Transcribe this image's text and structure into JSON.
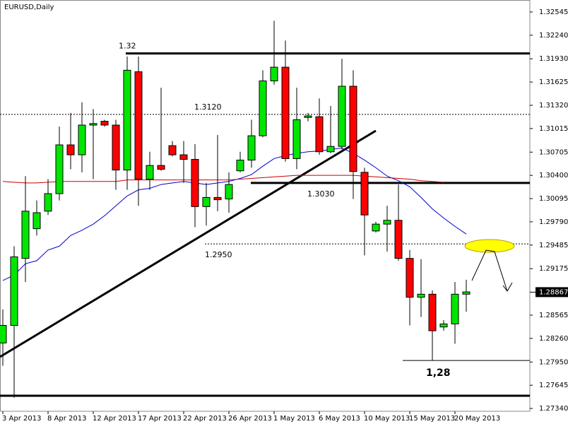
{
  "chart_data": {
    "type": "candlestick",
    "title": "EURUSD,Daily",
    "categories": [
      "3 Apr 2013",
      null,
      null,
      null,
      "8 Apr 2013",
      null,
      null,
      null,
      "12 Apr 2013",
      null,
      null,
      null,
      "17 Apr 2013",
      null,
      null,
      null,
      "22 Apr 2013",
      null,
      null,
      null,
      "26 Apr 2013",
      null,
      null,
      null,
      "1 May 2013",
      null,
      null,
      null,
      "6 May 2013",
      null,
      null,
      null,
      "10 May 2013",
      null,
      null,
      null,
      "15 May 2013",
      null,
      null,
      null,
      "20 May 2013",
      null
    ],
    "open": [
      1.282,
      1.2843,
      1.2931,
      1.297,
      1.2993,
      1.3016,
      1.308,
      1.3067,
      1.3106,
      1.3111,
      1.3106,
      1.3047,
      1.3176,
      1.3035,
      1.3053,
      1.3079,
      1.3067,
      1.3061,
      1.2999,
      1.3011,
      1.3009,
      1.3046,
      1.306,
      1.3092,
      1.3164,
      1.3182,
      1.3062,
      1.3116,
      1.3117,
      1.3071,
      1.3078,
      1.3157,
      1.3044,
      1.2967,
      1.2976,
      1.2981,
      1.2931,
      1.288,
      1.2884,
      1.2841,
      1.2845,
      1.2884
    ],
    "high": [
      1.2864,
      1.2947,
      1.3039,
      1.3007,
      1.3035,
      1.3104,
      1.3122,
      1.3136,
      1.3127,
      1.3113,
      1.3113,
      1.3196,
      1.3196,
      1.3071,
      1.3155,
      1.3085,
      1.3085,
      1.3081,
      1.303,
      1.3093,
      1.3044,
      1.3071,
      1.3113,
      1.3178,
      1.3243,
      1.3217,
      1.3155,
      1.3122,
      1.3141,
      1.3131,
      1.3193,
      1.3178,
      1.305,
      1.2979,
      1.3,
      1.3028,
      1.2942,
      1.293,
      1.2889,
      1.285,
      1.29,
      1.2903
    ],
    "low": [
      1.279,
      1.2748,
      1.29,
      1.2961,
      1.2988,
      1.3007,
      1.3048,
      1.3044,
      1.3035,
      1.3104,
      1.3021,
      1.3021,
      1.3,
      1.3021,
      1.3046,
      1.3065,
      1.303,
      1.2972,
      1.2974,
      1.2993,
      1.2991,
      1.3044,
      1.305,
      1.309,
      1.3159,
      1.3058,
      1.3048,
      1.3111,
      1.3067,
      1.3069,
      1.3074,
      1.3009,
      1.2935,
      1.2965,
      1.294,
      1.2928,
      1.2843,
      1.2854,
      1.2797,
      1.2836,
      1.2819,
      1.2861
    ],
    "close": [
      1.2843,
      1.2933,
      1.2993,
      1.2991,
      1.3016,
      1.308,
      1.3067,
      1.3106,
      1.3108,
      1.3106,
      1.3047,
      1.3178,
      1.3035,
      1.3053,
      1.3048,
      1.3067,
      1.3061,
      1.2999,
      1.3011,
      1.3008,
      1.3028,
      1.306,
      1.3092,
      1.3164,
      1.3182,
      1.3062,
      1.3113,
      1.3118,
      1.3071,
      1.3078,
      1.3157,
      1.3045,
      1.2988,
      1.2976,
      1.2981,
      1.2931,
      1.288,
      1.2884,
      1.2836,
      1.2845,
      1.2884,
      1.2887
    ],
    "up_color": "#00e600",
    "down_color": "#ff0000",
    "lines": [
      {
        "color": "#0000cc",
        "values": [
          1.2902,
          1.2909,
          1.2924,
          1.2928,
          1.2942,
          1.2947,
          1.2961,
          1.2968,
          1.2976,
          1.2987,
          1.3,
          1.3013,
          1.3021,
          1.3023,
          1.3028,
          1.303,
          1.3032,
          1.303,
          1.3028,
          1.303,
          1.3032,
          1.3036,
          1.3041,
          1.3052,
          1.3062,
          1.3066,
          1.3069,
          1.3071,
          1.3072,
          1.3074,
          1.3076,
          1.3069,
          1.306,
          1.305,
          1.3039,
          1.3033,
          1.3025,
          1.3011,
          1.2996,
          1.2984,
          1.2973,
          1.2963
        ]
      },
      {
        "color": "#cc0000",
        "values": [
          1.3032,
          1.3031,
          1.303,
          1.303,
          1.3031,
          1.3032,
          1.3032,
          1.3032,
          1.3032,
          1.3032,
          1.3032,
          1.3034,
          1.3034,
          1.3034,
          1.3034,
          1.3034,
          1.3034,
          1.3034,
          1.3034,
          1.3034,
          1.3034,
          1.3035,
          1.3036,
          1.3037,
          1.3038,
          1.3039,
          1.304,
          1.304,
          1.304,
          1.304,
          1.304,
          1.304,
          1.3039,
          1.3038,
          1.3037,
          1.3036,
          1.3035,
          1.3033,
          1.3032,
          1.3031,
          null,
          null
        ]
      }
    ],
    "annotations": [
      {
        "label": "1.32",
        "value": 1.32
      },
      {
        "label": "1.3120",
        "value": 1.312
      },
      {
        "label": "1.3030",
        "value": 1.303
      },
      {
        "label": "1.2950",
        "value": 1.295
      },
      {
        "label": "1,28",
        "value": 1.2797
      }
    ],
    "last_price": 1.28867,
    "ylim": [
      1.27303,
      1.32702
    ],
    "yticks": [
      1.32545,
      {
        "value": 1.3224,
        "label": "1.32240"
      },
      {
        "value": 1.3193,
        "label": "1.31930"
      },
      1.31625,
      {
        "value": 1.3132,
        "label": "1.31320"
      },
      1.31015,
      1.30705,
      {
        "value": 1.304,
        "label": "1.30400"
      },
      1.30095,
      {
        "value": 1.2979,
        "label": "1.29790"
      },
      1.29485,
      1.29175,
      1.28565,
      {
        "value": 1.2826,
        "label": "1.28260"
      },
      {
        "value": 1.2795,
        "label": "1.27950"
      },
      1.27645,
      {
        "value": 1.2734,
        "label": "1.27340"
      }
    ]
  }
}
